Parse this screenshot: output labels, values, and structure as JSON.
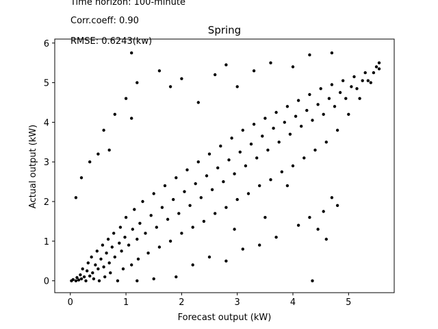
{
  "chart_data": {
    "type": "scatter",
    "title": "Spring",
    "xlabel": "Forecast output (kW)",
    "ylabel": "Actual output (kW)",
    "xlim": [
      -0.28,
      5.82
    ],
    "ylim": [
      -0.3,
      6.1
    ],
    "xticks": [
      0,
      1,
      2,
      3,
      4,
      5
    ],
    "yticks": [
      0,
      1,
      2,
      3,
      4,
      5,
      6
    ],
    "grid": false,
    "marker_color": "#000000",
    "annotations": [
      "Time horizon: 100-minute",
      "Corr.coeff: 0.90",
      "RMSE: 0.6243(kw)"
    ],
    "series": [
      {
        "description": "forecast vs actual (dense cloud around y = x, clipped at 0)",
        "points": [
          [
            0.02,
            0.0
          ],
          [
            0.05,
            0.03
          ],
          [
            0.1,
            0.0
          ],
          [
            0.12,
            0.08
          ],
          [
            0.15,
            0.02
          ],
          [
            0.18,
            0.15
          ],
          [
            0.2,
            0.05
          ],
          [
            0.22,
            0.3
          ],
          [
            0.25,
            0.1
          ],
          [
            0.28,
            0.0
          ],
          [
            0.3,
            0.25
          ],
          [
            0.32,
            0.45
          ],
          [
            0.35,
            0.12
          ],
          [
            0.38,
            0.6
          ],
          [
            0.4,
            0.2
          ],
          [
            0.42,
            0.05
          ],
          [
            0.45,
            0.4
          ],
          [
            0.48,
            0.75
          ],
          [
            0.5,
            0.3
          ],
          [
            0.52,
            0.0
          ],
          [
            0.55,
            0.55
          ],
          [
            0.58,
            0.9
          ],
          [
            0.6,
            0.35
          ],
          [
            0.62,
            0.1
          ],
          [
            0.65,
            0.7
          ],
          [
            0.68,
            1.05
          ],
          [
            0.7,
            0.45
          ],
          [
            0.72,
            0.2
          ],
          [
            0.75,
            0.85
          ],
          [
            0.78,
            1.2
          ],
          [
            0.8,
            0.6
          ],
          [
            0.85,
            0.0
          ],
          [
            0.88,
            0.95
          ],
          [
            0.9,
            1.35
          ],
          [
            0.92,
            0.75
          ],
          [
            0.95,
            0.3
          ],
          [
            0.98,
            1.1
          ],
          [
            1.0,
            1.6
          ],
          [
            1.05,
            0.9
          ],
          [
            1.1,
            0.4
          ],
          [
            1.12,
            1.3
          ],
          [
            1.15,
            1.8
          ],
          [
            1.2,
            1.05
          ],
          [
            1.22,
            0.55
          ],
          [
            1.25,
            1.45
          ],
          [
            1.3,
            2.0
          ],
          [
            1.35,
            1.2
          ],
          [
            1.4,
            0.7
          ],
          [
            1.45,
            1.65
          ],
          [
            1.5,
            2.2
          ],
          [
            1.55,
            1.35
          ],
          [
            1.6,
            0.85
          ],
          [
            1.65,
            1.85
          ],
          [
            1.7,
            2.4
          ],
          [
            1.75,
            1.55
          ],
          [
            1.8,
            1.0
          ],
          [
            1.85,
            2.05
          ],
          [
            1.9,
            2.6
          ],
          [
            1.95,
            1.7
          ],
          [
            2.0,
            1.2
          ],
          [
            2.05,
            2.25
          ],
          [
            2.1,
            2.8
          ],
          [
            2.15,
            1.9
          ],
          [
            2.2,
            1.35
          ],
          [
            2.25,
            2.45
          ],
          [
            2.3,
            3.0
          ],
          [
            2.35,
            2.1
          ],
          [
            2.4,
            1.5
          ],
          [
            2.45,
            2.65
          ],
          [
            2.5,
            3.2
          ],
          [
            2.55,
            2.3
          ],
          [
            2.6,
            1.7
          ],
          [
            2.65,
            2.85
          ],
          [
            2.7,
            3.4
          ],
          [
            2.75,
            2.5
          ],
          [
            2.8,
            1.85
          ],
          [
            2.85,
            3.05
          ],
          [
            2.9,
            3.6
          ],
          [
            2.95,
            2.7
          ],
          [
            3.0,
            2.05
          ],
          [
            3.05,
            3.25
          ],
          [
            3.1,
            3.8
          ],
          [
            3.15,
            2.9
          ],
          [
            3.2,
            2.2
          ],
          [
            3.25,
            3.45
          ],
          [
            3.3,
            3.95
          ],
          [
            3.35,
            3.1
          ],
          [
            3.4,
            2.4
          ],
          [
            3.45,
            3.65
          ],
          [
            3.5,
            4.1
          ],
          [
            3.55,
            3.3
          ],
          [
            3.6,
            2.55
          ],
          [
            3.65,
            3.85
          ],
          [
            3.7,
            4.25
          ],
          [
            3.75,
            3.5
          ],
          [
            3.8,
            2.75
          ],
          [
            3.85,
            4.0
          ],
          [
            3.9,
            4.4
          ],
          [
            3.95,
            3.7
          ],
          [
            4.0,
            2.9
          ],
          [
            4.05,
            4.15
          ],
          [
            4.1,
            4.55
          ],
          [
            4.15,
            3.9
          ],
          [
            4.2,
            3.1
          ],
          [
            4.25,
            4.3
          ],
          [
            4.3,
            4.7
          ],
          [
            4.35,
            4.05
          ],
          [
            4.4,
            3.3
          ],
          [
            4.45,
            4.45
          ],
          [
            4.5,
            4.85
          ],
          [
            4.55,
            4.2
          ],
          [
            4.6,
            3.5
          ],
          [
            4.65,
            4.6
          ],
          [
            4.7,
            4.95
          ],
          [
            4.75,
            4.4
          ],
          [
            4.8,
            3.8
          ],
          [
            4.85,
            4.75
          ],
          [
            4.9,
            5.05
          ],
          [
            4.95,
            4.6
          ],
          [
            5.0,
            4.2
          ],
          [
            5.05,
            4.9
          ],
          [
            5.1,
            5.15
          ],
          [
            5.15,
            4.85
          ],
          [
            5.2,
            4.6
          ],
          [
            5.25,
            5.05
          ],
          [
            5.3,
            5.25
          ],
          [
            5.35,
            5.05
          ],
          [
            5.4,
            5.0
          ],
          [
            5.45,
            5.25
          ],
          [
            5.5,
            5.4
          ],
          [
            5.55,
            5.35
          ],
          [
            5.55,
            5.5
          ],
          [
            0.1,
            2.1
          ],
          [
            0.2,
            2.6
          ],
          [
            0.35,
            3.0
          ],
          [
            0.5,
            3.2
          ],
          [
            0.6,
            3.8
          ],
          [
            0.7,
            3.3
          ],
          [
            0.8,
            4.2
          ],
          [
            1.0,
            4.6
          ],
          [
            1.1,
            4.1
          ],
          [
            1.2,
            5.0
          ],
          [
            1.1,
            5.75
          ],
          [
            1.6,
            5.3
          ],
          [
            1.8,
            4.9
          ],
          [
            2.0,
            5.1
          ],
          [
            2.3,
            4.5
          ],
          [
            2.6,
            5.2
          ],
          [
            2.8,
            5.45
          ],
          [
            3.0,
            4.9
          ],
          [
            3.3,
            5.3
          ],
          [
            3.6,
            5.5
          ],
          [
            4.0,
            5.4
          ],
          [
            4.3,
            5.7
          ],
          [
            4.7,
            5.75
          ],
          [
            1.2,
            0.0
          ],
          [
            1.5,
            0.05
          ],
          [
            1.9,
            0.1
          ],
          [
            2.2,
            0.4
          ],
          [
            2.5,
            0.6
          ],
          [
            2.8,
            0.5
          ],
          [
            3.1,
            0.8
          ],
          [
            3.4,
            0.9
          ],
          [
            3.7,
            1.1
          ],
          [
            4.1,
            1.4
          ],
          [
            4.3,
            1.6
          ],
          [
            4.45,
            1.3
          ],
          [
            4.55,
            1.75
          ],
          [
            4.7,
            2.1
          ],
          [
            4.8,
            1.9
          ],
          [
            4.35,
            0.0
          ],
          [
            4.6,
            1.05
          ],
          [
            3.9,
            2.4
          ],
          [
            3.5,
            1.6
          ],
          [
            2.95,
            1.3
          ]
        ]
      }
    ]
  }
}
